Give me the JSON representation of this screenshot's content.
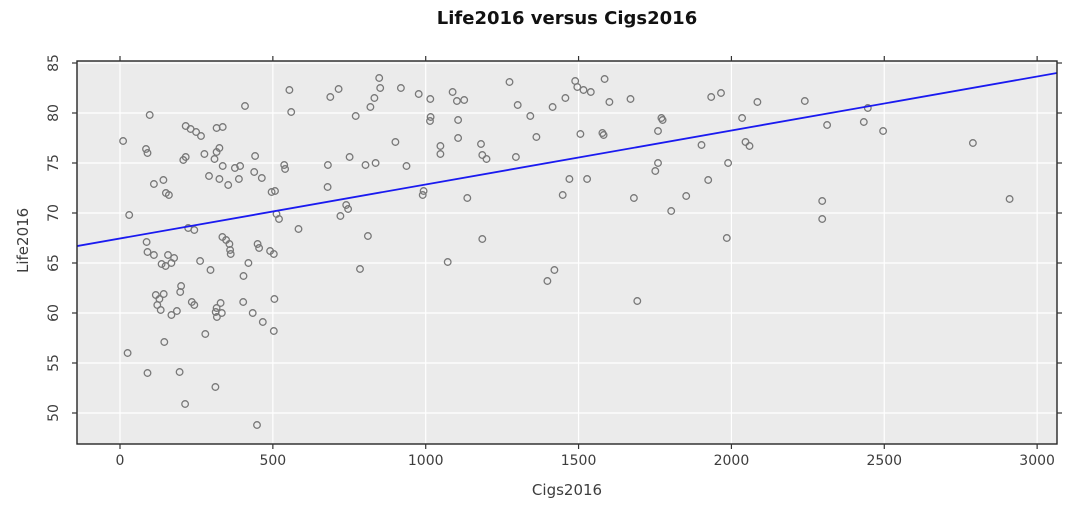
{
  "page": {
    "background": "#ffffff"
  },
  "chart_data": {
    "type": "scatter",
    "title": "Life2016 versus Cigs2016",
    "xlabel": "Cigs2016",
    "ylabel": "Life2016",
    "x_ticks": [
      0,
      500,
      1000,
      1500,
      2000,
      2500,
      3000
    ],
    "y_ticks": [
      50,
      55,
      60,
      65,
      70,
      75,
      80,
      85
    ],
    "xlim": [
      -141,
      3065
    ],
    "ylim": [
      46.9,
      85.3
    ],
    "grid": true,
    "legend_position": "none",
    "panel_background": "#ebebeb",
    "grid_color": "#ffffff",
    "border_color": "#262626",
    "tick_color": "#333333",
    "tick_label_color": "#3d3d3d",
    "point_color": "#787878",
    "regression_line": {
      "type": "linear",
      "intercept": 67.45,
      "slope": 0.0054,
      "color": "#1a1af0"
    },
    "points": [
      [
        97,
        79.8
      ],
      [
        409,
        80.7
      ],
      [
        10,
        77.2
      ],
      [
        85,
        76.4
      ],
      [
        90,
        76.0
      ],
      [
        215,
        78.7
      ],
      [
        231,
        78.4
      ],
      [
        249,
        78.1
      ],
      [
        265,
        77.7
      ],
      [
        316,
        78.5
      ],
      [
        336,
        78.6
      ],
      [
        207,
        75.3
      ],
      [
        215,
        75.6
      ],
      [
        276,
        75.9
      ],
      [
        325,
        76.5
      ],
      [
        316,
        76.1
      ],
      [
        309,
        75.4
      ],
      [
        336,
        74.7
      ],
      [
        376,
        74.5
      ],
      [
        393,
        74.7
      ],
      [
        442,
        75.7
      ],
      [
        439,
        74.1
      ],
      [
        464,
        73.5
      ],
      [
        291,
        73.7
      ],
      [
        325,
        73.4
      ],
      [
        354,
        72.8
      ],
      [
        389,
        73.4
      ],
      [
        111,
        72.9
      ],
      [
        142,
        73.3
      ],
      [
        150,
        72.0
      ],
      [
        160,
        71.8
      ],
      [
        496,
        72.1
      ],
      [
        507,
        72.2
      ],
      [
        30,
        69.8
      ],
      [
        223,
        68.5
      ],
      [
        243,
        68.3
      ],
      [
        87,
        67.1
      ],
      [
        90,
        66.1
      ],
      [
        111,
        65.8
      ],
      [
        157,
        65.8
      ],
      [
        177,
        65.5
      ],
      [
        136,
        64.9
      ],
      [
        149,
        64.7
      ],
      [
        168,
        65.0
      ],
      [
        335,
        67.6
      ],
      [
        347,
        67.3
      ],
      [
        358,
        66.9
      ],
      [
        360,
        66.3
      ],
      [
        362,
        65.9
      ],
      [
        262,
        65.2
      ],
      [
        296,
        64.3
      ],
      [
        420,
        65.0
      ],
      [
        450,
        66.9
      ],
      [
        455,
        66.5
      ],
      [
        491,
        66.2
      ],
      [
        404,
        63.7
      ],
      [
        200,
        62.7
      ],
      [
        197,
        62.1
      ],
      [
        117,
        61.8
      ],
      [
        129,
        61.4
      ],
      [
        143,
        61.9
      ],
      [
        122,
        60.8
      ],
      [
        133,
        60.3
      ],
      [
        235,
        61.1
      ],
      [
        243,
        60.8
      ],
      [
        168,
        59.8
      ],
      [
        186,
        60.2
      ],
      [
        329,
        61.0
      ],
      [
        316,
        60.5
      ],
      [
        313,
        60.1
      ],
      [
        333,
        60.0
      ],
      [
        317,
        59.6
      ],
      [
        403,
        61.1
      ],
      [
        434,
        60.0
      ],
      [
        467,
        59.1
      ],
      [
        505,
        61.4
      ],
      [
        503,
        58.2
      ],
      [
        279,
        57.9
      ],
      [
        145,
        57.1
      ],
      [
        25,
        56.0
      ],
      [
        90,
        54.0
      ],
      [
        195,
        54.1
      ],
      [
        312,
        52.6
      ],
      [
        213,
        50.9
      ],
      [
        448,
        48.8
      ],
      [
        512,
        69.9
      ],
      [
        520,
        69.4
      ],
      [
        503,
        65.9
      ],
      [
        554,
        82.3
      ],
      [
        560,
        80.1
      ],
      [
        688,
        81.6
      ],
      [
        715,
        82.4
      ],
      [
        771,
        79.7
      ],
      [
        819,
        80.6
      ],
      [
        832,
        81.5
      ],
      [
        848,
        83.5
      ],
      [
        851,
        82.5
      ],
      [
        919,
        82.5
      ],
      [
        977,
        81.9
      ],
      [
        1015,
        81.4
      ],
      [
        1088,
        82.1
      ],
      [
        1102,
        81.2
      ],
      [
        1126,
        81.3
      ],
      [
        1016,
        79.6
      ],
      [
        1014,
        79.2
      ],
      [
        1106,
        79.3
      ],
      [
        1274,
        83.1
      ],
      [
        1301,
        80.8
      ],
      [
        1106,
        77.5
      ],
      [
        1048,
        76.7
      ],
      [
        1048,
        75.9
      ],
      [
        1181,
        76.9
      ],
      [
        1185,
        75.8
      ],
      [
        1199,
        75.4
      ],
      [
        1295,
        75.6
      ],
      [
        901,
        77.1
      ],
      [
        680,
        74.8
      ],
      [
        751,
        75.6
      ],
      [
        803,
        74.8
      ],
      [
        836,
        75.0
      ],
      [
        937,
        74.7
      ],
      [
        537,
        74.8
      ],
      [
        540,
        74.4
      ],
      [
        679,
        72.6
      ],
      [
        993,
        72.2
      ],
      [
        990,
        71.8
      ],
      [
        1136,
        71.5
      ],
      [
        740,
        70.8
      ],
      [
        746,
        70.4
      ],
      [
        721,
        69.7
      ],
      [
        584,
        68.4
      ],
      [
        811,
        67.7
      ],
      [
        1185,
        67.4
      ],
      [
        1489,
        83.2
      ],
      [
        1496,
        82.6
      ],
      [
        1516,
        82.3
      ],
      [
        1540,
        82.1
      ],
      [
        1585,
        83.4
      ],
      [
        1457,
        81.5
      ],
      [
        1415,
        80.6
      ],
      [
        1342,
        79.7
      ],
      [
        1601,
        81.1
      ],
      [
        1670,
        81.4
      ],
      [
        1934,
        81.6
      ],
      [
        1966,
        82.0
      ],
      [
        2085,
        81.1
      ],
      [
        1362,
        77.6
      ],
      [
        1506,
        77.9
      ],
      [
        1578,
        78.0
      ],
      [
        1582,
        77.8
      ],
      [
        1771,
        79.5
      ],
      [
        1775,
        79.3
      ],
      [
        1760,
        78.2
      ],
      [
        1902,
        76.8
      ],
      [
        2046,
        77.1
      ],
      [
        2059,
        76.7
      ],
      [
        2035,
        79.5
      ],
      [
        1989,
        75.0
      ],
      [
        1760,
        75.0
      ],
      [
        1751,
        74.2
      ],
      [
        1470,
        73.4
      ],
      [
        1528,
        73.4
      ],
      [
        1448,
        71.8
      ],
      [
        1681,
        71.5
      ],
      [
        1924,
        73.3
      ],
      [
        1852,
        71.7
      ],
      [
        1803,
        70.2
      ],
      [
        1985,
        67.5
      ],
      [
        785,
        64.4
      ],
      [
        1072,
        65.1
      ],
      [
        1421,
        64.3
      ],
      [
        1398,
        63.2
      ],
      [
        1692,
        61.2
      ],
      [
        2240,
        81.2
      ],
      [
        2446,
        80.5
      ],
      [
        2313,
        78.8
      ],
      [
        2433,
        79.1
      ],
      [
        2496,
        78.2
      ],
      [
        2790,
        77.0
      ],
      [
        2297,
        71.2
      ],
      [
        2297,
        69.4
      ],
      [
        2910,
        71.4
      ]
    ]
  }
}
